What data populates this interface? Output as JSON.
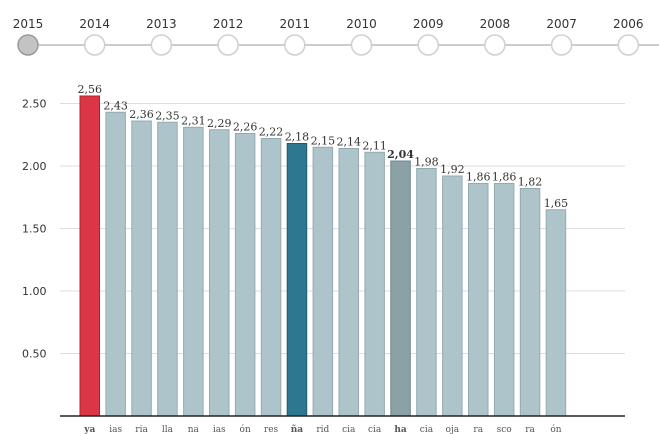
{
  "timeline": {
    "years": [
      "2015",
      "2014",
      "2013",
      "2012",
      "2011",
      "2010",
      "2009",
      "2008",
      "2007",
      "2006"
    ],
    "selected": "2015"
  },
  "colors": {
    "bar_default": "#aec4cb",
    "bar_highlight": "#dc3545",
    "bar_national": "#2e7790",
    "bar_emphasis": "#8aa1a6",
    "grid": "#dddddd",
    "timeline_line": "#cccccc",
    "selected_dot": "#c3c3c3"
  },
  "chart_data": {
    "type": "bar",
    "categories": [
      "ya",
      "ias",
      "ria",
      "lla",
      "na",
      "ias",
      "ón",
      "res",
      "ña",
      "rid",
      "cia",
      "cia",
      "ha",
      "cia",
      "oja",
      "ra",
      "sco",
      "ra",
      "ón"
    ],
    "values": [
      2.56,
      2.43,
      2.36,
      2.35,
      2.31,
      2.29,
      2.26,
      2.22,
      2.18,
      2.15,
      2.14,
      2.11,
      2.04,
      1.98,
      1.92,
      1.86,
      1.86,
      1.82,
      1.65
    ],
    "value_labels": [
      "2,56",
      "2,43",
      "2,36",
      "2,35",
      "2,31",
      "2,29",
      "2,26",
      "2,22",
      "2,18",
      "2,15",
      "2,14",
      "2,11",
      "2,04",
      "1,98",
      "1,92",
      "1,86",
      "1,86",
      "1,82",
      "1,65"
    ],
    "highlight_index": 0,
    "national_index": 8,
    "emphasis_index": 12,
    "ylim": [
      0,
      2.72
    ],
    "yticks": [
      0.5,
      1.0,
      1.5,
      2.0,
      2.5
    ],
    "ytick_labels": [
      "0.50",
      "1.00",
      "1.50",
      "2.00",
      "2.50"
    ],
    "grid": true
  }
}
